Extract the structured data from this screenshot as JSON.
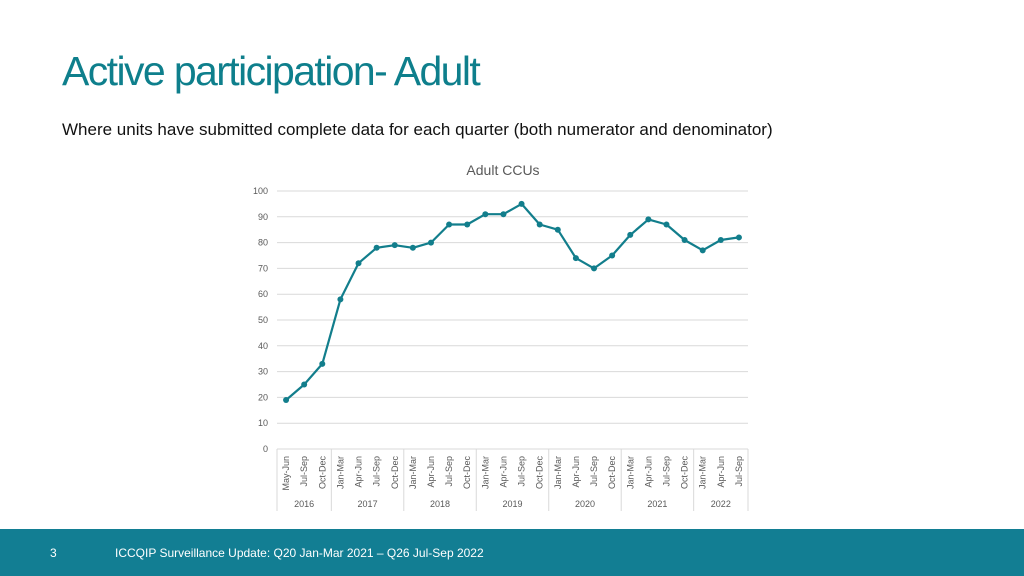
{
  "slide": {
    "title": "Active participation- Adult",
    "subtitle": "Where units have submitted complete data for each quarter (both numerator and denominator)"
  },
  "footer": {
    "page_number": "3",
    "text": "ICCQIP Surveillance Update: Q20 Jan-Mar 2021 – Q26 Jul-Sep 2022"
  },
  "chart_data": {
    "type": "line",
    "title": "Adult CCUs",
    "xlabel": "",
    "ylabel": "",
    "ylim": [
      0,
      100
    ],
    "yticks": [
      0,
      10,
      20,
      30,
      40,
      50,
      60,
      70,
      80,
      90,
      100
    ],
    "grid": true,
    "legend": "none",
    "categories": [
      "May-Jun",
      "Jul-Sep",
      "Oct-Dec",
      "Jan-Mar",
      "Apr-Jun",
      "Jul-Sep",
      "Oct-Dec",
      "Jan-Mar",
      "Apr-Jun",
      "Jul-Sep",
      "Oct-Dec",
      "Jan-Mar",
      "Apr-Jun",
      "Jul-Sep",
      "Oct-Dec",
      "Jan-Mar",
      "Apr-Jun",
      "Jul-Sep",
      "Oct-Dec",
      "Jan-Mar",
      "Apr-Jun",
      "Jul-Sep",
      "Oct-Dec",
      "Jan-Mar",
      "Apr-Jun",
      "Jul-Sep"
    ],
    "year_groups": [
      {
        "label": "2016",
        "count": 3
      },
      {
        "label": "2017",
        "count": 4
      },
      {
        "label": "2018",
        "count": 4
      },
      {
        "label": "2019",
        "count": 4
      },
      {
        "label": "2020",
        "count": 4
      },
      {
        "label": "2021",
        "count": 4
      },
      {
        "label": "2022",
        "count": 3
      }
    ],
    "series": [
      {
        "values": [
          19,
          25,
          33,
          58,
          72,
          78,
          79,
          78,
          80,
          87,
          87,
          91,
          91,
          95,
          87,
          85,
          74,
          70,
          75,
          83,
          89,
          87,
          81,
          77,
          81,
          82
        ]
      }
    ],
    "line_color": "#127e8c",
    "grid_color": "#d9d9d9"
  }
}
